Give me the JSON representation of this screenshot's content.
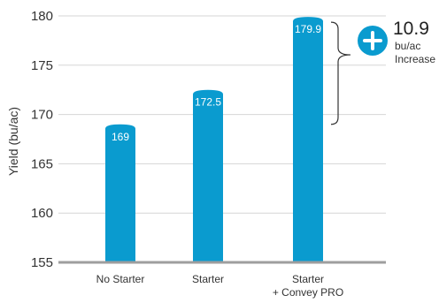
{
  "chart_data": {
    "type": "bar",
    "categories": [
      "No Starter",
      "Starter",
      [
        "Starter",
        "+ Convey PRO"
      ]
    ],
    "values": [
      169,
      172.5,
      179.9
    ],
    "value_labels": [
      "169",
      "172.5",
      "179.9"
    ],
    "ylabel": "Yield (bu/ac)",
    "ylim": [
      155,
      180
    ],
    "yticks": [
      155,
      160,
      165,
      170,
      175,
      180
    ],
    "grid": true,
    "bar_color": "#0a9bcf",
    "annotation": {
      "icon": "plus-circle-icon",
      "value": "10.9",
      "unit": "bu/ac",
      "text": "Increase",
      "from_value": 169,
      "to_value": 179.9,
      "color": "#0a9bcf"
    }
  }
}
